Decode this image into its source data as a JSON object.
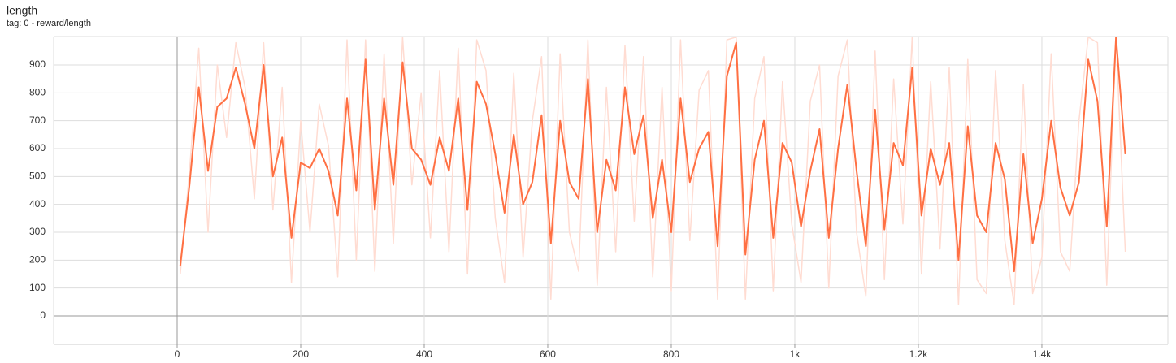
{
  "chart_data": {
    "type": "line",
    "title": "length",
    "subtitle": "tag: 0 - reward/length",
    "x": [
      5,
      20,
      35,
      50,
      65,
      80,
      95,
      110,
      125,
      140,
      155,
      170,
      185,
      200,
      215,
      230,
      245,
      260,
      275,
      290,
      305,
      320,
      335,
      350,
      365,
      380,
      395,
      410,
      425,
      440,
      455,
      470,
      485,
      500,
      515,
      530,
      545,
      560,
      575,
      590,
      605,
      620,
      635,
      650,
      665,
      680,
      695,
      710,
      725,
      740,
      755,
      770,
      785,
      800,
      815,
      830,
      845,
      860,
      875,
      890,
      905,
      920,
      935,
      950,
      965,
      980,
      995,
      1010,
      1025,
      1040,
      1055,
      1070,
      1085,
      1100,
      1115,
      1130,
      1145,
      1160,
      1175,
      1190,
      1205,
      1220,
      1235,
      1250,
      1265,
      1280,
      1295,
      1310,
      1325,
      1340,
      1355,
      1370,
      1385,
      1400,
      1415,
      1430,
      1445,
      1460,
      1475,
      1490,
      1505,
      1520,
      1535
    ],
    "series": [
      {
        "color": "#ffdcd2",
        "values": [
          150,
          520,
          960,
          300,
          900,
          640,
          980,
          820,
          420,
          980,
          380,
          820,
          120,
          700,
          300,
          760,
          610,
          140,
          990,
          200,
          990,
          160,
          940,
          260,
          1000,
          470,
          800,
          280,
          880,
          230,
          960,
          150,
          990,
          880,
          350,
          120,
          870,
          210,
          700,
          930,
          60,
          940,
          300,
          160,
          990,
          110,
          820,
          230,
          970,
          340,
          930,
          140,
          820,
          90,
          990,
          270,
          810,
          880,
          60,
          990,
          1000,
          60,
          780,
          930,
          90,
          840,
          330,
          120,
          770,
          900,
          100,
          860,
          990,
          300,
          70,
          950,
          130,
          850,
          330,
          1000,
          150,
          840,
          240,
          890,
          40,
          920,
          130,
          80,
          880,
          270,
          40,
          830,
          80,
          210,
          940,
          230,
          160,
          700,
          1000,
          980,
          110,
          1000,
          230
        ]
      },
      {
        "color": "#ff7043",
        "values": [
          180,
          470,
          820,
          520,
          750,
          780,
          890,
          760,
          600,
          900,
          500,
          640,
          280,
          550,
          530,
          600,
          520,
          360,
          780,
          450,
          920,
          380,
          780,
          470,
          910,
          600,
          560,
          470,
          640,
          520,
          780,
          380,
          840,
          760,
          580,
          370,
          650,
          400,
          480,
          720,
          260,
          700,
          480,
          420,
          850,
          300,
          560,
          450,
          820,
          580,
          720,
          350,
          560,
          300,
          780,
          480,
          600,
          660,
          250,
          860,
          980,
          220,
          560,
          700,
          280,
          620,
          550,
          320,
          520,
          670,
          280,
          600,
          830,
          520,
          250,
          740,
          310,
          620,
          540,
          890,
          360,
          600,
          470,
          620,
          200,
          680,
          360,
          300,
          620,
          490,
          160,
          580,
          260,
          420,
          700,
          460,
          360,
          480,
          920,
          770,
          320,
          1000,
          580
        ]
      }
    ],
    "xlim": [
      -200,
      1604
    ],
    "ylim": [
      -102,
      1002
    ],
    "xticks": [
      0,
      200,
      400,
      600,
      800,
      {
        "value": 1000,
        "label": "1k"
      },
      {
        "value": 1200,
        "label": "1.2k"
      },
      {
        "value": 1400,
        "label": "1.4k"
      }
    ],
    "yticks": [
      0,
      100,
      200,
      300,
      400,
      500,
      600,
      700,
      800,
      900
    ],
    "grid": true
  }
}
